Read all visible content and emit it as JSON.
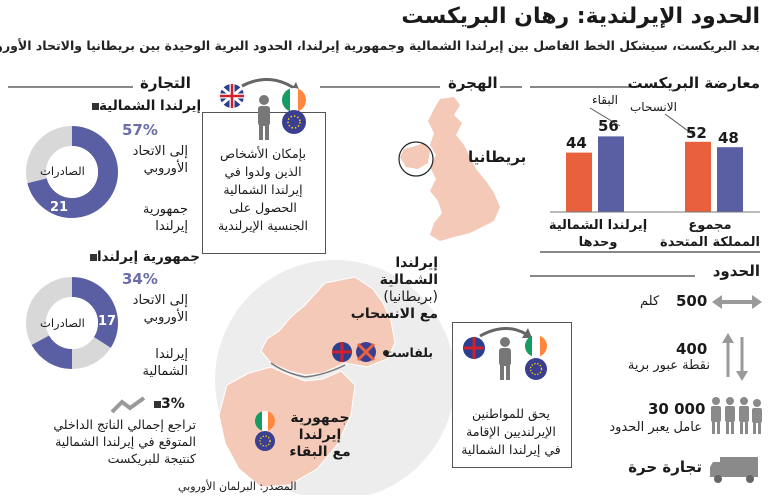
{
  "header": {
    "title": "الحدود الإيرلندية: رهان البريكست",
    "subtitle": "بعد البريكست، سيشكل الخط الفاصل بين إيرلندا الشمالية وجمهورية إيرلندا، الحدود البرية الوحيدة بين بريطانيا والاتحاد الأوروبي"
  },
  "sections": {
    "opposition": "معارضة البريكست",
    "migration": "الهجرة",
    "trade": "التجارة",
    "border": "الحدود"
  },
  "opposition_chart": {
    "legend_remain": "البقاء",
    "legend_leave": "الانسحاب",
    "groups": [
      {
        "label_line1": "مجموع",
        "label_line2": "المملكة المتحدة",
        "leave_value": "52",
        "remain_value": "48"
      },
      {
        "label_line1": "إيرلندا الشمالية",
        "label_line2": "وحدها",
        "leave_value": "44",
        "remain_value": "56"
      }
    ],
    "colors": {
      "leave": "#e8603c",
      "remain": "#5a5fa3"
    }
  },
  "chart_data": {
    "type": "bar",
    "categories": [
      "مجموع المملكة المتحدة",
      "إيرلندا الشمالية وحدها"
    ],
    "series": [
      {
        "name": "الانسحاب",
        "values": [
          52,
          44
        ]
      },
      {
        "name": "البقاء",
        "values": [
          48,
          56
        ]
      }
    ],
    "ylim": [
      0,
      100
    ]
  },
  "migration": {
    "britain_label": "بريطانيا",
    "box1": [
      "بإمكان الأشخاص",
      "الذين ولدوا في",
      "إيرلندا الشمالية",
      "الحصول على",
      "الجنسية الإيرلندية"
    ],
    "box2": [
      "يحق للمواطنين",
      "الإيرلنديين الإقامة",
      "في إيرلندا الشمالية"
    ]
  },
  "map": {
    "ni_line1": "إيرلندا",
    "ni_line2": "الشمالية",
    "ni_line3": "(بريطانيا)",
    "ni_line4": "مع الانسحاب",
    "belfast": "بلفاست",
    "roi_line1": "جمهورية",
    "roi_line2": "إيرلندا",
    "roi_line3": "مع البقاء"
  },
  "trade": {
    "ni": {
      "heading": "إيرلندا الشمالية",
      "pct": "57%",
      "to_line1": "إلى الاتحاد",
      "to_line2": "الأوروبي",
      "center": "الصادرات",
      "value": "21",
      "other_line1": "جمهورية",
      "other_line2": "إيرلندا",
      "pct_fraction": 0.57,
      "value_fraction": 0.21
    },
    "roi": {
      "heading": "جمهورية إيرلندا",
      "pct": "34%",
      "to_line1": "إلى الاتحاد",
      "to_line2": "الأوروبي",
      "center": "الصادرات",
      "value": "17",
      "other_line1": "إيرلندا",
      "other_line2": "الشمالية",
      "pct_fraction": 0.34,
      "value_fraction": 0.17
    },
    "gdp": {
      "pct": "3%",
      "line1": "تراجع إجمالي الناتج الداخلي",
      "line2": "المتوقع في إيرلندا الشمالية",
      "line3": "كنتيجة للبريكست"
    }
  },
  "border": {
    "length_value": "500",
    "length_unit": "كلم",
    "crossings_value": "400",
    "crossings_label": "نقطة عبور برية",
    "workers_value": "30 000",
    "workers_label": "عامل يعبر الحدود",
    "free_trade": "تجارة حرة"
  },
  "source": "المصدر: البرلمان الأوروبي",
  "colors": {
    "eu_blue": "#4a4f9c",
    "remain_purple": "#5a5fa3",
    "leave_orange": "#e8603c",
    "land_pink": "#f4c9b8",
    "donut_grey": "#d8d8d8"
  },
  "icons": [
    "uk-flag-icon",
    "ireland-flag-icon",
    "eu-flag-icon",
    "person-icon",
    "curved-arrow-icon",
    "horizontal-arrow-icon",
    "vertical-arrows-icon",
    "workers-icon",
    "truck-icon",
    "down-trend-icon"
  ]
}
